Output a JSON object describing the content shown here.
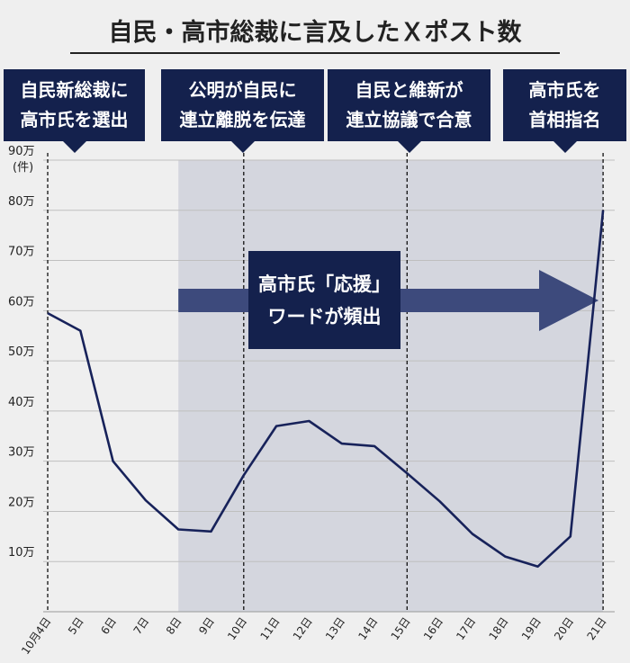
{
  "title": "自民・高市総裁に言及したＸポスト数",
  "events": [
    {
      "label": "自民新総裁に\n高市氏を選出",
      "x_index": 0
    },
    {
      "label": "公明が自民に\n連立離脱を伝達",
      "x_index": 6
    },
    {
      "label": "自民と維新が\n連立協議で合意",
      "x_index": 11
    },
    {
      "label": "高市氏を\n首相指名",
      "x_index": 17
    }
  ],
  "annotation": {
    "text": "高市氏「応援」\nワードが頻出",
    "from_index": 4,
    "to_index": 17
  },
  "colors": {
    "navy": "#14214d",
    "line": "#17225a",
    "shade": "#d4d6de",
    "arrow": "#3d4a7c",
    "background": "#efefef"
  },
  "chart_data": {
    "type": "line",
    "title": "自民・高市総裁に言及したＸポスト数",
    "ylabel": "(件)",
    "x": [
      "10月4日",
      "5日",
      "6日",
      "7日",
      "8日",
      "9日",
      "10日",
      "11日",
      "12日",
      "13日",
      "14日",
      "15日",
      "16日",
      "17日",
      "18日",
      "19日",
      "20日",
      "21日"
    ],
    "values": [
      595000,
      560000,
      300000,
      222000,
      164000,
      160000,
      272000,
      370000,
      380000,
      335000,
      330000,
      276000,
      220000,
      155000,
      110000,
      90000,
      150000,
      800000
    ],
    "ylim": [
      0,
      900000
    ],
    "yticks": [
      {
        "v": 100000,
        "label": "10万"
      },
      {
        "v": 200000,
        "label": "20万"
      },
      {
        "v": 300000,
        "label": "30万"
      },
      {
        "v": 400000,
        "label": "40万"
      },
      {
        "v": 500000,
        "label": "50万"
      },
      {
        "v": 600000,
        "label": "60万"
      },
      {
        "v": 700000,
        "label": "70万"
      },
      {
        "v": 800000,
        "label": "80万"
      },
      {
        "v": 900000,
        "label": "90万"
      }
    ],
    "shaded_range_index": [
      4,
      17
    ],
    "dashed_lines_index": [
      0,
      6,
      11,
      17
    ],
    "grid": true
  }
}
